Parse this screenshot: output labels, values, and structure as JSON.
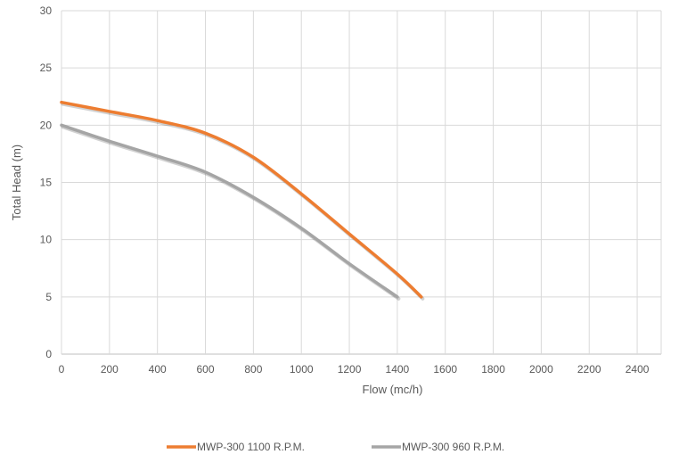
{
  "chart_data": {
    "type": "line",
    "title": "",
    "xlabel": "Flow (mc/h)",
    "ylabel": "Total Head (m)",
    "xlim": [
      0,
      2500
    ],
    "ylim": [
      0,
      30
    ],
    "x_ticks": [
      0,
      200,
      400,
      600,
      800,
      1000,
      1200,
      1400,
      1600,
      1800,
      2000,
      2200,
      2400
    ],
    "y_ticks": [
      0,
      5,
      10,
      15,
      20,
      25,
      30
    ],
    "grid": true,
    "legend_position": "bottom",
    "series": [
      {
        "name": "MWP-300 1100 R.P.M.",
        "color": "#ED7D31",
        "x": [
          0,
          200,
          400,
          600,
          800,
          1000,
          1200,
          1400,
          1500
        ],
        "y": [
          22,
          21.2,
          20.4,
          19.3,
          17.2,
          14.0,
          10.5,
          7.0,
          5.0
        ]
      },
      {
        "name": "MWP-300 960 R.P.M.",
        "color": "#A5A5A5",
        "x": [
          0,
          200,
          400,
          600,
          800,
          1000,
          1200,
          1400
        ],
        "y": [
          20,
          18.6,
          17.3,
          15.9,
          13.7,
          11.0,
          7.9,
          5.0
        ]
      }
    ]
  }
}
